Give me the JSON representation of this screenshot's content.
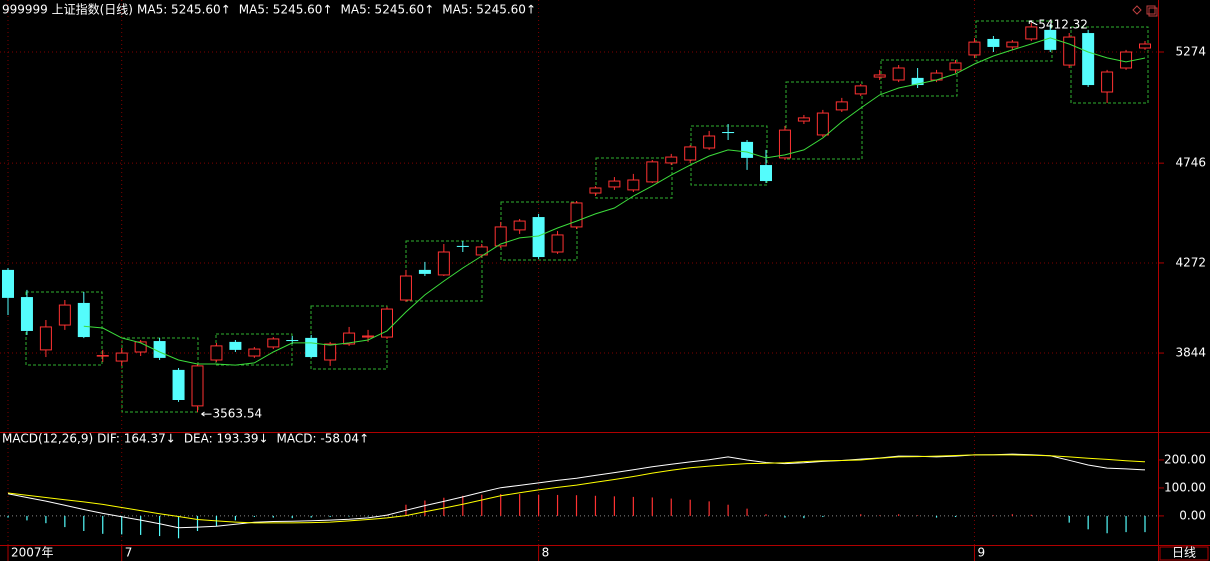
{
  "chart_data": [
    {
      "type": "candlestick",
      "title": "999999 上证指数(日线)",
      "indicators": [
        {
          "text": "MA5: 5245.60",
          "color": "#ffffff",
          "arrow": "↑",
          "arrow_color": "#ff3232"
        },
        {
          "text": "MA5: 5245.60",
          "color": "#ffff00",
          "arrow": "↑",
          "arrow_color": "#ff3232"
        },
        {
          "text": "MA5: 5245.60",
          "color": "#ff00ff",
          "arrow": "↑",
          "arrow_color": "#ff3232"
        },
        {
          "text": "MA5: 5245.60",
          "color": "#00e600",
          "arrow": "↑",
          "arrow_color": "#ff3232"
        }
      ],
      "period_label": "日线",
      "categories": [
        "2007年",
        null,
        null,
        null,
        null,
        null,
        "7",
        null,
        null,
        null,
        null,
        null,
        null,
        null,
        null,
        null,
        null,
        null,
        null,
        null,
        null,
        null,
        null,
        null,
        null,
        null,
        null,
        null,
        "8",
        null,
        null,
        null,
        null,
        null,
        null,
        null,
        null,
        null,
        null,
        null,
        null,
        null,
        null,
        null,
        null,
        null,
        null,
        null,
        null,
        null,
        null,
        "9",
        null,
        null,
        null,
        null,
        null,
        null,
        null,
        null,
        null
      ],
      "open": [
        4239,
        4110,
        3859,
        3977,
        4082,
        3830,
        3806,
        3849,
        3901,
        3764,
        3593,
        3811,
        3897,
        3830,
        3873,
        3906,
        3916,
        3811,
        3887,
        3920,
        3920,
        4096,
        4239,
        4215,
        4353,
        4310,
        4353,
        4429,
        4490,
        4324,
        4443,
        4604,
        4633,
        4619,
        4657,
        4747,
        4761,
        4818,
        4894,
        4847,
        4737,
        4771,
        4946,
        4880,
        4999,
        5075,
        5155,
        5141,
        5151,
        5141,
        5189,
        5260,
        5336,
        5298,
        5336,
        5379,
        5212,
        5364,
        5084,
        5198,
        5293
      ],
      "high": [
        4248,
        4144,
        4001,
        4096,
        4134,
        3859,
        3868,
        3906,
        3916,
        3773,
        3792,
        3892,
        3906,
        3873,
        3920,
        3925,
        3930,
        3897,
        3968,
        3954,
        4063,
        4239,
        4277,
        4362,
        4376,
        4362,
        4467,
        4481,
        4505,
        4424,
        4566,
        4637,
        4680,
        4695,
        4761,
        4790,
        4832,
        4899,
        4932,
        4856,
        4809,
        4923,
        4975,
        4999,
        5056,
        5122,
        5189,
        5212,
        5198,
        5189,
        5236,
        5340,
        5350,
        5331,
        5412.32,
        5407,
        5364,
        5379,
        5189,
        5284,
        5326
      ],
      "low": [
        4025,
        3930,
        3825,
        3954,
        3915,
        3802,
        3783,
        3830,
        3811,
        3612,
        3563.54,
        3802,
        3849,
        3821,
        3863,
        3887,
        3821,
        3783,
        3878,
        3897,
        3911,
        4087,
        4210,
        4210,
        4324,
        4296,
        4343,
        4410,
        4291,
        4315,
        4433,
        4590,
        4619,
        4609,
        4652,
        4737,
        4747,
        4809,
        4856,
        4714,
        4652,
        4761,
        4932,
        4870,
        4989,
        5065,
        5141,
        5131,
        5103,
        5131,
        5174,
        5245,
        5274,
        5284,
        5326,
        5274,
        5198,
        5108,
        5032,
        5189,
        5284
      ],
      "close": [
        4106,
        3949,
        3968,
        4072,
        3920,
        3832,
        3844,
        3897,
        3821,
        3621,
        3783,
        3878,
        3859,
        3863,
        3911,
        3901,
        3825,
        3887,
        3939,
        3925,
        4053,
        4210,
        4220,
        4324,
        4348,
        4348,
        4443,
        4471,
        4300,
        4405,
        4557,
        4628,
        4661,
        4666,
        4752,
        4775,
        4823,
        4875,
        4889,
        4771,
        4661,
        4903,
        4961,
        4984,
        5037,
        5113,
        5165,
        5198,
        5117,
        5174,
        5222,
        5321,
        5298,
        5321,
        5393,
        5284,
        5345,
        5117,
        5179,
        5274,
        5312
      ],
      "up_color": "#ff3232",
      "down_color": "#54fcfc",
      "series": [
        {
          "color": "#3cdc3c",
          "values": [
            null,
            null,
            null,
            null,
            3971,
            3963,
            3916,
            3892,
            3849,
            3811,
            3792,
            3792,
            3787,
            3797,
            3849,
            3892,
            3892,
            3882,
            3892,
            3906,
            3949,
            4039,
            4120,
            4186,
            4248,
            4305,
            4362,
            4391,
            4400,
            4438,
            4471,
            4505,
            4533,
            4590,
            4638,
            4690,
            4737,
            4780,
            4809,
            4799,
            4771,
            4785,
            4809,
            4866,
            4942,
            5008,
            5070,
            5103,
            5122,
            5141,
            5170,
            5217,
            5255,
            5284,
            5312,
            5341,
            5312,
            5274,
            5246,
            5227,
            5245.6
          ]
        }
      ],
      "ylim": [
        3469,
        5426
      ],
      "yticks": [
        3844,
        4272,
        4746,
        5274
      ],
      "grid": true
    },
    {
      "type": "macd",
      "title": "MACD(12,26,9)",
      "series": [
        {
          "text": "DIF: 164.37",
          "arrow": "↓",
          "arrow_color": "#54fcfc",
          "color": "#ffffff",
          "kind": "line",
          "values": [
            79,
            66,
            53,
            38,
            23,
            9,
            -3,
            -15,
            -28,
            -42,
            -40,
            -37,
            -30,
            -23,
            -20,
            -19,
            -17,
            -15,
            -12,
            -7,
            3,
            20,
            37,
            52,
            68,
            85,
            101,
            109,
            118,
            127,
            135,
            145,
            155,
            165,
            176,
            185,
            193,
            201,
            211,
            200,
            191,
            187,
            190,
            195,
            198,
            203,
            207,
            214,
            213,
            211,
            214,
            218,
            219,
            221,
            219,
            215,
            199,
            182,
            171,
            168,
            164.37
          ]
        },
        {
          "text": "DEA: 193.39",
          "arrow": "↓",
          "arrow_color": "#54fcfc",
          "color": "#ffff00",
          "kind": "line",
          "values": [
            82,
            74,
            66,
            58,
            50,
            41,
            30,
            19,
            8,
            -2,
            -13,
            -18,
            -22,
            -25,
            -25,
            -25,
            -24,
            -22,
            -18,
            -13,
            -7,
            1,
            15,
            28,
            42,
            57,
            72,
            83,
            93,
            102,
            110,
            120,
            130,
            141,
            153,
            163,
            172,
            178,
            183,
            187,
            188,
            190,
            194,
            197,
            198,
            200,
            206,
            211,
            212,
            214,
            216,
            218,
            218,
            218,
            217,
            215,
            211,
            206,
            202,
            197,
            193.39
          ]
        },
        {
          "text": "MACD: -58.04",
          "arrow": "↑",
          "arrow_color": "#ff3232",
          "color": "#ff00ff",
          "kind": "bar",
          "up_color": "#ff3232",
          "down_color": "#54fcfc",
          "values": [
            -6,
            -16,
            -26,
            -40,
            -54,
            -64,
            -66,
            -68,
            -72,
            -80,
            -54,
            -38,
            -16,
            -4,
            -6,
            -8,
            -6,
            -4,
            -2,
            -2,
            4,
            40,
            55,
            65,
            72,
            76,
            78,
            78,
            76,
            75,
            74,
            72,
            70,
            68,
            66,
            62,
            58,
            52,
            40,
            26,
            6,
            -6,
            -8,
            -4,
            0,
            6,
            2,
            6,
            2,
            -6,
            -4,
            0,
            2,
            6,
            4,
            0,
            -24,
            -48,
            -62,
            -58,
            -58.04
          ]
        }
      ],
      "ylim": [
        -104,
        300
      ],
      "yticks": [
        {
          "value": 200,
          "label": "200.00"
        },
        {
          "value": 100,
          "label": "100.00"
        },
        {
          "value": 0,
          "label": "0.00"
        }
      ],
      "zero_line": true
    }
  ]
}
